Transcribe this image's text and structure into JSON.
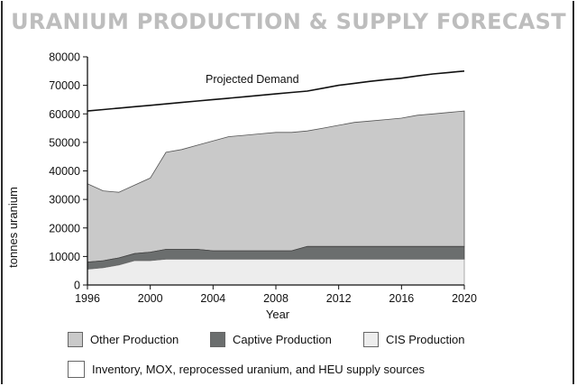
{
  "chart_data": {
    "type": "area",
    "title": "URANIUM PRODUCTION & SUPPLY FORECAST",
    "xlabel": "Year",
    "ylabel": "tonnes uranium",
    "xlim": [
      1996,
      2020
    ],
    "ylim": [
      0,
      80000
    ],
    "xticks": [
      1996,
      2000,
      2004,
      2008,
      2012,
      2016,
      2020
    ],
    "yticks": [
      0,
      10000,
      20000,
      30000,
      40000,
      50000,
      60000,
      70000,
      80000
    ],
    "x": [
      1996,
      1997,
      1998,
      1999,
      2000,
      2001,
      2002,
      2003,
      2004,
      2005,
      2006,
      2007,
      2008,
      2009,
      2010,
      2011,
      2012,
      2013,
      2014,
      2015,
      2016,
      2017,
      2018,
      2019,
      2020
    ],
    "series": [
      {
        "name": "CIS Production",
        "values": [
          5500,
          6000,
          7000,
          8500,
          8500,
          9000,
          9000,
          9000,
          9000,
          9000,
          9000,
          9000,
          9000,
          9000,
          9000,
          9000,
          9000,
          9000,
          9000,
          9000,
          9000,
          9000,
          9000,
          9000,
          9000
        ]
      },
      {
        "name": "Captive Production",
        "values": [
          2500,
          2500,
          2500,
          2500,
          3000,
          3500,
          3500,
          3500,
          3000,
          3000,
          3000,
          3000,
          3000,
          3000,
          4500,
          4500,
          4500,
          4500,
          4500,
          4500,
          4500,
          4500,
          4500,
          4500,
          4500
        ]
      },
      {
        "name": "Other Production",
        "values": [
          27500,
          24500,
          23000,
          24000,
          26000,
          34000,
          35000,
          36500,
          38500,
          40000,
          40500,
          41000,
          41500,
          41500,
          40500,
          41500,
          42500,
          43500,
          44000,
          44500,
          45000,
          46000,
          46500,
          47000,
          47500
        ]
      },
      {
        "name": "Projected Demand",
        "values": [
          61000,
          61500,
          62000,
          62500,
          63000,
          63500,
          64000,
          64500,
          65000,
          65500,
          66000,
          66500,
          67000,
          67500,
          68000,
          69000,
          70000,
          70700,
          71400,
          72000,
          72500,
          73300,
          74000,
          74500,
          75000
        ]
      }
    ],
    "annotations": [
      "Projected Demand"
    ],
    "legend": [
      {
        "label": "Other Production",
        "color": "#c9c9c9"
      },
      {
        "label": "Captive Production",
        "color": "#6b6e6e"
      },
      {
        "label": "CIS Production",
        "color": "#ededed"
      },
      {
        "label": "Inventory, MOX, reprocessed uranium, and HEU supply sources",
        "color": "#ffffff"
      }
    ],
    "colors": {
      "other": "#c9c9c9",
      "captive": "#6b6e6e",
      "cis": "#ededed",
      "demand": "#111111"
    }
  }
}
